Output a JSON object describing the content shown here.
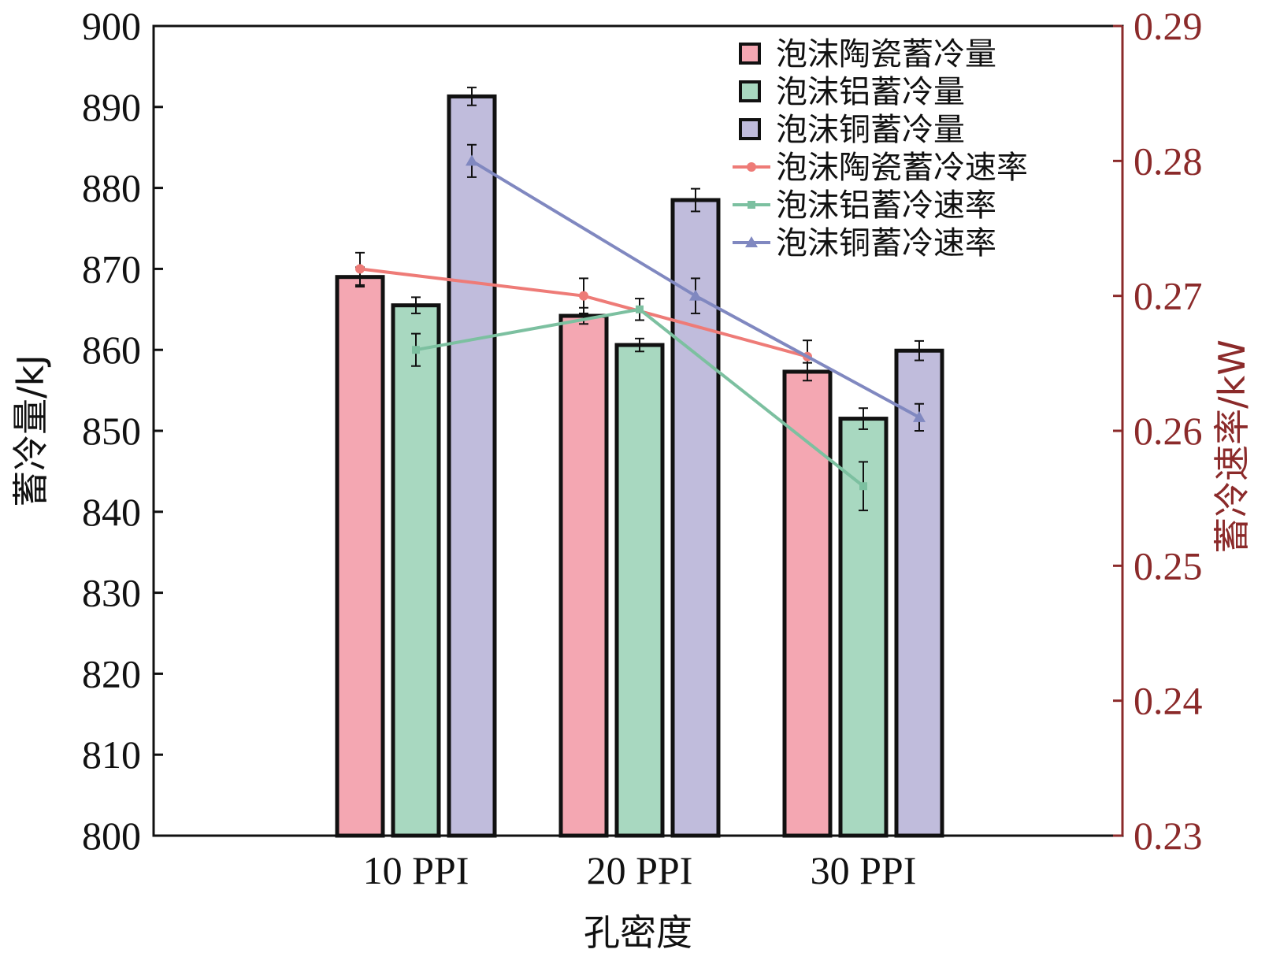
{
  "chart_data": {
    "type": "bar",
    "categories": [
      "10 PPI",
      "20 PPI",
      "30 PPI"
    ],
    "xlabel": "孔密度",
    "ylabel": "蓄冷量/kJ",
    "y2label": "蓄冷速率/kW",
    "ylim": [
      800,
      900
    ],
    "yticks": [
      800,
      810,
      820,
      830,
      840,
      850,
      860,
      870,
      880,
      890,
      900
    ],
    "y2lim": [
      0.23,
      0.29
    ],
    "y2ticks": [
      "0.23",
      "0.24",
      "0.25",
      "0.26",
      "0.27",
      "0.28",
      "0.29"
    ],
    "bar_series": [
      {
        "name": "泡沫陶瓷蓄冷量",
        "color": "#f4a7b2",
        "values": [
          869,
          864.2,
          857.3
        ],
        "errors": [
          1.2,
          1.0,
          1.1
        ]
      },
      {
        "name": "泡沫铝蓄冷量",
        "color": "#a8d8c0",
        "values": [
          865.5,
          860.6,
          851.5
        ],
        "errors": [
          1.0,
          0.8,
          1.3
        ]
      },
      {
        "name": "泡沫铜蓄冷量",
        "color": "#c0bcdc",
        "values": [
          891.3,
          878.5,
          859.9
        ],
        "errors": [
          1.1,
          1.4,
          1.2
        ]
      }
    ],
    "line_series": [
      {
        "name": "泡沫陶瓷蓄冷速率",
        "color": "#ee7b77",
        "marker": "circle",
        "values": [
          0.272,
          0.27,
          0.2655
        ],
        "errors": [
          0.0012,
          0.0013,
          0.0012
        ]
      },
      {
        "name": "泡沫铝蓄冷速率",
        "color": "#7cc0a0",
        "marker": "square",
        "values": [
          0.266,
          0.269,
          0.2559
        ],
        "errors": [
          0.0012,
          0.0008,
          0.0018
        ]
      },
      {
        "name": "泡沫铜蓄冷速率",
        "color": "#8088c0",
        "marker": "triangle",
        "values": [
          0.28,
          0.27,
          0.261
        ],
        "errors": [
          0.0012,
          0.0013,
          0.001
        ]
      }
    ],
    "legend_position": "top-right"
  }
}
